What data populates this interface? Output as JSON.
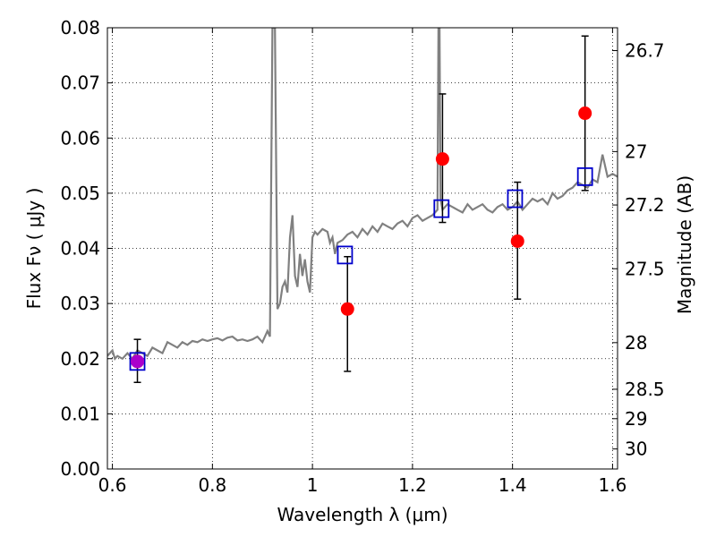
{
  "chart_data": {
    "type": "scatter",
    "xlabel": "Wavelength  λ (μm)",
    "ylabel": "Flux  Fν  ( μJy )",
    "ylabel_right": "Magnitude (AB)",
    "xlim": [
      0.59,
      1.61
    ],
    "ylim": [
      0.0,
      0.08
    ],
    "grid": true,
    "x_ticks": [
      0.6,
      0.8,
      1.0,
      1.2,
      1.4,
      1.6
    ],
    "x_tick_labels": [
      "0.6",
      "0.8",
      "1",
      "1.2",
      "1.4",
      "1.6"
    ],
    "y_ticks": [
      0.0,
      0.01,
      0.02,
      0.03,
      0.04,
      0.05,
      0.06,
      0.07,
      0.08
    ],
    "y_tick_labels": [
      "0.00",
      "0.01",
      "0.02",
      "0.03",
      "0.04",
      "0.05",
      "0.06",
      "0.07",
      "0.08"
    ],
    "right_axis_ticks": [
      {
        "label": "26.7",
        "mag": 26.7
      },
      {
        "label": "27",
        "mag": 27.0
      },
      {
        "label": "27.2",
        "mag": 27.2
      },
      {
        "label": "27.5",
        "mag": 27.5
      },
      {
        "label": "28",
        "mag": 28.0
      },
      {
        "label": "28.5",
        "mag": 28.5
      },
      {
        "label": "29",
        "mag": 29.0
      },
      {
        "label": "30",
        "mag": 30.0
      }
    ],
    "series": [
      {
        "kind": "line",
        "color": "#808080",
        "x": [
          0.59,
          0.6,
          0.605,
          0.61,
          0.62,
          0.63,
          0.64,
          0.65,
          0.66,
          0.67,
          0.68,
          0.69,
          0.7,
          0.71,
          0.72,
          0.73,
          0.74,
          0.75,
          0.76,
          0.77,
          0.78,
          0.79,
          0.8,
          0.81,
          0.82,
          0.83,
          0.84,
          0.85,
          0.86,
          0.87,
          0.88,
          0.89,
          0.9,
          0.91,
          0.915,
          0.92,
          0.925,
          0.93,
          0.935,
          0.94,
          0.945,
          0.95,
          0.955,
          0.96,
          0.965,
          0.97,
          0.975,
          0.98,
          0.985,
          0.99,
          0.995,
          1.0,
          1.005,
          1.01,
          1.02,
          1.03,
          1.035,
          1.04,
          1.045,
          1.05,
          1.06,
          1.07,
          1.08,
          1.09,
          1.1,
          1.11,
          1.12,
          1.13,
          1.14,
          1.15,
          1.16,
          1.17,
          1.18,
          1.19,
          1.2,
          1.21,
          1.22,
          1.23,
          1.24,
          1.25,
          1.252,
          1.254,
          1.256,
          1.26,
          1.27,
          1.28,
          1.29,
          1.3,
          1.31,
          1.32,
          1.33,
          1.34,
          1.35,
          1.36,
          1.37,
          1.38,
          1.39,
          1.4,
          1.41,
          1.42,
          1.43,
          1.44,
          1.45,
          1.46,
          1.47,
          1.48,
          1.49,
          1.5,
          1.51,
          1.52,
          1.53,
          1.54,
          1.55,
          1.56,
          1.57,
          1.58,
          1.59,
          1.6,
          1.61
        ],
        "y": [
          0.0205,
          0.0215,
          0.02,
          0.0205,
          0.02,
          0.021,
          0.02,
          0.0215,
          0.021,
          0.0205,
          0.022,
          0.0215,
          0.021,
          0.023,
          0.0225,
          0.022,
          0.023,
          0.0225,
          0.0232,
          0.023,
          0.0235,
          0.0232,
          0.0235,
          0.0237,
          0.0233,
          0.0238,
          0.024,
          0.0233,
          0.0235,
          0.0232,
          0.0235,
          0.024,
          0.023,
          0.025,
          0.024,
          0.08,
          0.08,
          0.029,
          0.03,
          0.033,
          0.034,
          0.032,
          0.042,
          0.046,
          0.035,
          0.033,
          0.039,
          0.035,
          0.038,
          0.034,
          0.032,
          0.042,
          0.043,
          0.0425,
          0.0435,
          0.043,
          0.041,
          0.042,
          0.039,
          0.041,
          0.0415,
          0.0425,
          0.043,
          0.042,
          0.0435,
          0.0425,
          0.044,
          0.043,
          0.0445,
          0.044,
          0.0435,
          0.0445,
          0.045,
          0.044,
          0.0455,
          0.046,
          0.045,
          0.0455,
          0.046,
          0.047,
          0.08,
          0.08,
          0.049,
          0.047,
          0.048,
          0.0475,
          0.047,
          0.0465,
          0.048,
          0.047,
          0.0475,
          0.048,
          0.047,
          0.0465,
          0.0475,
          0.048,
          0.047,
          0.0475,
          0.0485,
          0.047,
          0.048,
          0.049,
          0.0485,
          0.049,
          0.048,
          0.05,
          0.049,
          0.0495,
          0.0505,
          0.051,
          0.052,
          0.0515,
          0.051,
          0.0525,
          0.052,
          0.057,
          0.053,
          0.0535,
          0.053
        ]
      },
      {
        "kind": "points",
        "name": "",
        "marker": "circle",
        "color": "#ff0000",
        "x": [
          0.65,
          1.07,
          1.26,
          1.41,
          1.545
        ],
        "y": [
          0.0195,
          0.029,
          0.0562,
          0.0413,
          0.0645
        ],
        "yerr_low": [
          0.0157,
          0.0177,
          0.0447,
          0.0308,
          0.0505
        ],
        "yerr_high": [
          0.0235,
          0.0385,
          0.068,
          0.052,
          0.0785
        ]
      },
      {
        "kind": "points",
        "name": "",
        "marker": "square",
        "color": "#0000cc",
        "x": [
          0.65,
          1.065,
          1.258,
          1.405,
          1.545
        ],
        "y": [
          0.0195,
          0.0388,
          0.0472,
          0.049,
          0.053
        ]
      }
    ],
    "overlap_point": {
      "x": 0.65,
      "y": 0.0195,
      "color": "#aa00cc"
    }
  }
}
